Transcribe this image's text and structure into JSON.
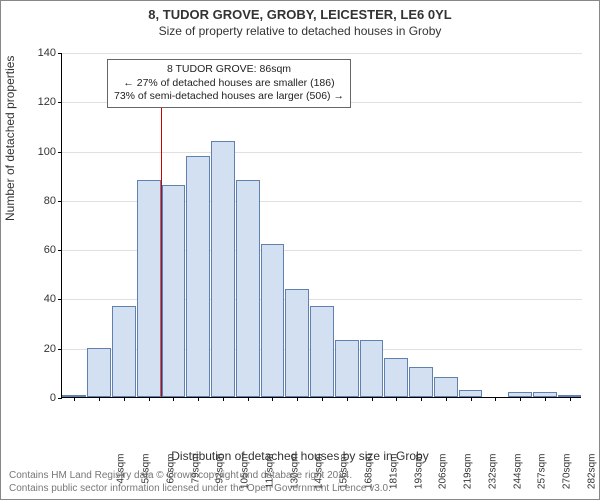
{
  "titles": {
    "line1": "8, TUDOR GROVE, GROBY, LEICESTER, LE6 0YL",
    "line2": "Size of property relative to detached houses in Groby"
  },
  "chart": {
    "type": "histogram",
    "background_color": "#ffffff",
    "grid_color": "#e0e0e0",
    "bar_fill": "#d3e0f2",
    "bar_border": "#6080b0",
    "marker_color": "#cc0000",
    "ylim": [
      0,
      140
    ],
    "ytick_step": 20,
    "yticks": [
      0,
      20,
      40,
      60,
      80,
      100,
      120,
      140
    ],
    "categories": [
      "41sqm",
      "54sqm",
      "66sqm",
      "79sqm",
      "92sqm",
      "105sqm",
      "117sqm",
      "130sqm",
      "143sqm",
      "156sqm",
      "168sqm",
      "181sqm",
      "193sqm",
      "206sqm",
      "219sqm",
      "232sqm",
      "244sqm",
      "257sqm",
      "270sqm",
      "282sqm",
      "295sqm"
    ],
    "values": [
      1,
      20,
      37,
      88,
      86,
      98,
      104,
      88,
      62,
      44,
      37,
      23,
      23,
      16,
      12,
      8,
      3,
      0,
      2,
      2,
      1
    ],
    "bar_width": 0.96,
    "marker_index": 3.5,
    "ylabel": "Number of detached properties",
    "xlabel": "Distribution of detached houses by size in Groby",
    "label_fontsize": 12,
    "tick_fontsize": 11
  },
  "annotation": {
    "line1": "8 TUDOR GROVE: 86sqm",
    "line2": "← 27% of detached houses are smaller (186)",
    "line3": "73% of semi-detached houses are larger (506) →"
  },
  "footer": {
    "line1": "Contains HM Land Registry data © Crown copyright and database right 2024.",
    "line2": "Contains public sector information licensed under the Open Government Licence v3.0."
  }
}
